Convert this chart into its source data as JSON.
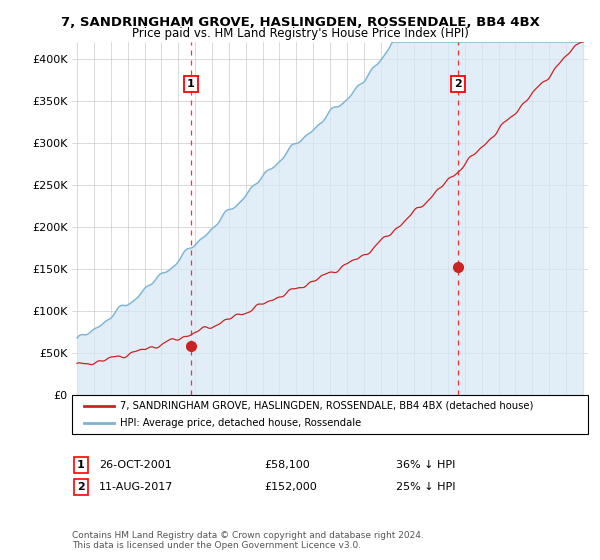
{
  "title": "7, SANDRINGHAM GROVE, HASLINGDEN, ROSSENDALE, BB4 4BX",
  "subtitle": "Price paid vs. HM Land Registry's House Price Index (HPI)",
  "x_start_year": 1995,
  "x_end_year": 2025,
  "ylim": [
    0,
    420000
  ],
  "yticks": [
    0,
    50000,
    100000,
    150000,
    200000,
    250000,
    300000,
    350000,
    400000
  ],
  "sale1_x": 6.75,
  "sale1_price": 58100,
  "sale1_label": "1",
  "sale2_x": 22.6,
  "sale2_price": 152000,
  "sale2_label": "2",
  "legend_entry1": "7, SANDRINGHAM GROVE, HASLINGDEN, ROSSENDALE, BB4 4BX (detached house)",
  "legend_entry2": "HPI: Average price, detached house, Rossendale",
  "annotation1_date": "26-OCT-2001",
  "annotation1_price": "£58,100",
  "annotation1_pct": "36% ↓ HPI",
  "annotation2_date": "11-AUG-2017",
  "annotation2_price": "£152,000",
  "annotation2_pct": "25% ↓ HPI",
  "footer": "Contains HM Land Registry data © Crown copyright and database right 2024.\nThis data is licensed under the Open Government Licence v3.0.",
  "hpi_color": "#7ab3d4",
  "hpi_fill_color": "#d6e8f5",
  "sale_color": "#cc2222",
  "grid_color": "#cccccc",
  "background_color": "#ffffff"
}
